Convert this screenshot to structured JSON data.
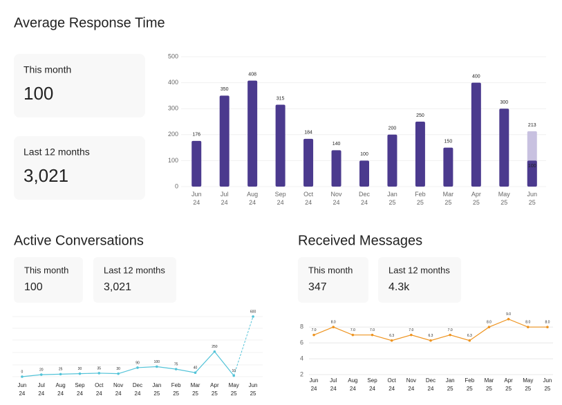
{
  "cards": [
    [
      {
        "label": "This month",
        "value": "100"
      },
      {
        "label": "Last 12 months",
        "value": "3,021"
      }
    ],
    [
      {
        "label": "This month",
        "value": "100"
      },
      {
        "label": "Last 12 months",
        "value": "3,021"
      }
    ],
    [
      {
        "label": "This month",
        "value": "347"
      },
      {
        "label": "Last 12 months",
        "value": "4.3k"
      }
    ]
  ],
  "chart_data": [
    {
      "type": "bar",
      "title": "Average Response Time",
      "categories": [
        "Jun 24",
        "Jul 24",
        "Aug 24",
        "Sep 24",
        "Oct 24",
        "Nov 24",
        "Dec 24",
        "Jan 25",
        "Feb 25",
        "Mar 25",
        "Apr 25",
        "May 25",
        "Jun 25"
      ],
      "series": [
        {
          "color": "#4b3a8e",
          "values": [
            176,
            350,
            408,
            315,
            184,
            140,
            100,
            200,
            250,
            150,
            400,
            300,
            100
          ]
        },
        {
          "color": "#c8c1e0",
          "values": [
            null,
            null,
            null,
            null,
            null,
            null,
            null,
            null,
            null,
            null,
            null,
            null,
            213
          ]
        }
      ],
      "ylim": [
        0,
        500
      ],
      "yticks": [
        0,
        100,
        200,
        300,
        400,
        500
      ],
      "grid": true
    },
    {
      "type": "line",
      "title": "Active Conversations",
      "categories": [
        "Jun 24",
        "Jul 24",
        "Aug 24",
        "Sep 24",
        "Oct 24",
        "Nov 24",
        "Dec 24",
        "Jan 25",
        "Feb 25",
        "Mar 25",
        "Apr 25",
        "May 25",
        "Jun 25"
      ],
      "values": [
        0,
        20,
        25,
        30,
        35,
        30,
        90,
        100,
        75,
        40,
        250,
        10,
        600
      ],
      "color": "#52c3d8",
      "dashed_last": true,
      "ylim": [
        0,
        600
      ]
    },
    {
      "type": "line",
      "title": "Received Messages",
      "categories": [
        "Jun 24",
        "Jul 24",
        "Aug 24",
        "Sep 24",
        "Oct 24",
        "Nov 24",
        "Dec 24",
        "Jan 25",
        "Feb 25",
        "Mar 25",
        "Apr 25",
        "May 25",
        "Jun 25"
      ],
      "values": [
        7,
        8,
        7,
        7,
        6.3,
        7,
        6.3,
        7,
        6.3,
        8,
        9,
        8,
        8
      ],
      "value_labels": [
        "7.0",
        "8.0",
        "7.0",
        "7.0",
        "6.3",
        "7.0",
        "6.3",
        "7.0",
        "6.3",
        "8.0",
        "9.0",
        "8.0",
        "8.0"
      ],
      "color": "#ee9420",
      "ylim": [
        2,
        9.5
      ],
      "yticks": [
        2,
        4,
        6,
        8
      ],
      "grid": true
    }
  ]
}
